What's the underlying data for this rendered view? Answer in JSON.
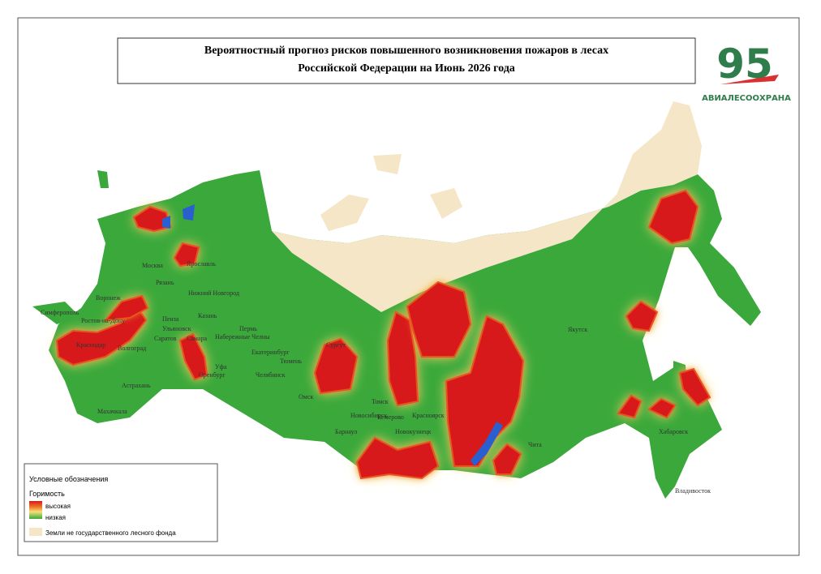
{
  "header": {
    "title_line1": "Вероятностный прогноз рисков повышенного возникновения пожаров в лесах",
    "title_line2": "Российской Федерации на Июнь 2026 года"
  },
  "logo": {
    "number": "95",
    "name": "АВИАЛЕСООХРАНА"
  },
  "legend": {
    "title": "Условные обозначения",
    "subtitle": "Горимость",
    "high": "высокая",
    "low": "низкая",
    "non_forest": "Земли не государственного лесного фонда"
  },
  "cities": [
    "Москва",
    "Рязань",
    "Ярославль",
    "Нижний Новгород",
    "Воронеж",
    "Пенза",
    "Казань",
    "Ульяновск",
    "Саратов",
    "Самара",
    "Волгоград",
    "Ростов-на-Дону",
    "Краснодар",
    "Симферополь",
    "Астрахань",
    "Махачкала",
    "Пермь",
    "Набережные Челны",
    "Уфа",
    "Екатеринбург",
    "Тюмень",
    "Челябинск",
    "Оренбург",
    "Сургут",
    "Омск",
    "Томск",
    "Новосибирск",
    "Кемерово",
    "Красноярск",
    "Барнаул",
    "Новокузнецк",
    "Чита",
    "Якутск",
    "Хабаровск",
    "Владивосток"
  ]
}
